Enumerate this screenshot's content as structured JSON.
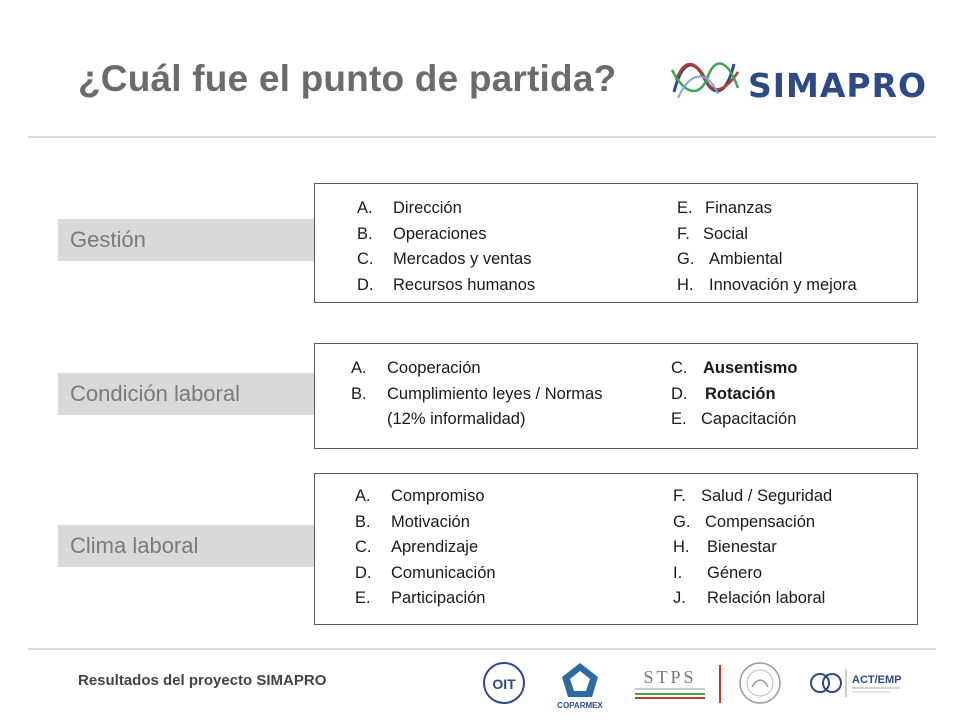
{
  "title": "¿Cuál fue el punto de partida?",
  "logo_text": "SIMAPRO",
  "categories": [
    {
      "id": "gestion",
      "label": "Gestión"
    },
    {
      "id": "condicion",
      "label": "Condición laboral"
    },
    {
      "id": "clima",
      "label": "Clima laboral"
    }
  ],
  "gestion": {
    "left": [
      {
        "letter": "A.",
        "text": "Dirección"
      },
      {
        "letter": "B.",
        "text": "Operaciones"
      },
      {
        "letter": "C.",
        "text": "Mercados y ventas"
      },
      {
        "letter": "D.",
        "text": "Recursos humanos"
      }
    ],
    "right": [
      {
        "letter": "E.",
        "text": "Finanzas"
      },
      {
        "letter": "F.",
        "text": "Social"
      },
      {
        "letter": "G.",
        "text": "Ambiental"
      },
      {
        "letter": "H.",
        "text": "Innovación y mejora"
      }
    ]
  },
  "condicion": {
    "left": [
      {
        "letter": "A.",
        "text": "Cooperación"
      },
      {
        "letter": "B.",
        "text": "Cumplimiento leyes / Normas"
      },
      {
        "letter": "",
        "text": "(12% informalidad)"
      }
    ],
    "right": [
      {
        "letter": "C.",
        "text": "Ausentismo"
      },
      {
        "letter": "D.",
        "text": "Rotación"
      },
      {
        "letter": "E.",
        "text": "Capacitación"
      }
    ]
  },
  "clima": {
    "left": [
      {
        "letter": "A.",
        "text": "Compromiso"
      },
      {
        "letter": "B.",
        "text": "Motivación"
      },
      {
        "letter": "C.",
        "text": "Aprendizaje"
      },
      {
        "letter": "D.",
        "text": "Comunicación"
      },
      {
        "letter": "E.",
        "text": "Participación"
      }
    ],
    "right": [
      {
        "letter": "F.",
        "text": "Salud / Seguridad"
      },
      {
        "letter": "G.",
        "text": "Compensación"
      },
      {
        "letter": "H.",
        "text": "Bienestar"
      },
      {
        "letter": "I.",
        "text": "Género"
      },
      {
        "letter": "J.",
        "text": "Relación laboral"
      }
    ]
  },
  "footer": {
    "text": "Resultados del proyecto SIMAPRO",
    "logos": [
      "OIT",
      "COPARMEX",
      "STPS",
      "ACT/EMP"
    ]
  },
  "colors": {
    "title": "#6b6b6b",
    "label_bg": "#d9d9d9",
    "label_text": "#7a7a7a",
    "logo_blue": "#2d4a87",
    "box_border": "#5a5a5a"
  }
}
